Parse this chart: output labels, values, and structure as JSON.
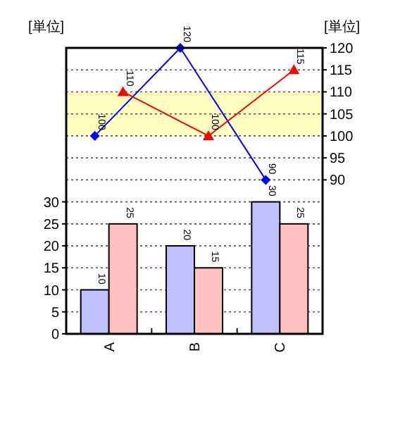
{
  "chart_data": {
    "type": "bar",
    "ylabel": "[単位]",
    "y2label": "[単位]",
    "categories": [
      "A",
      "B",
      "C"
    ],
    "series": [
      {
        "color": "#c0c0ff",
        "values": [
          10,
          20,
          30
        ]
      },
      {
        "color": "#ffc0c0",
        "values": [
          25,
          15,
          25
        ]
      },
      {
        "type": "line",
        "axis": "y2",
        "color": "#0000ff",
        "marker": "diamond",
        "values": [
          100,
          120,
          90
        ]
      },
      {
        "type": "line",
        "axis": "y2",
        "color": "#ff0000",
        "marker": "triangle",
        "values": [
          110,
          100,
          115
        ]
      }
    ],
    "ylim": [
      0,
      65
    ],
    "yticks": [
      0,
      5,
      10,
      15,
      20,
      25,
      30
    ],
    "y2lim": [
      55,
      120
    ],
    "y2ticks": [
      90,
      95,
      100,
      105,
      110,
      115,
      120
    ],
    "bands": [
      {
        "axis": "y2",
        "from": 100,
        "to": 110,
        "color": "#ffffc0"
      }
    ],
    "grid": "y",
    "data_labels": true
  }
}
